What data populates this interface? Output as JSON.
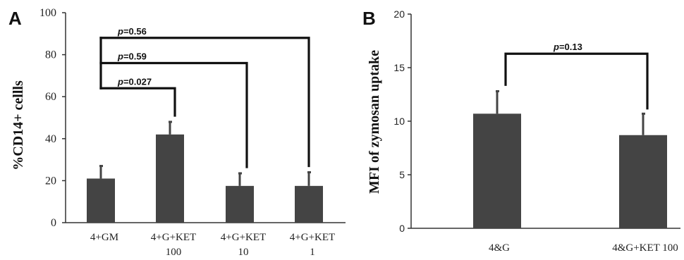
{
  "chart_data": [
    {
      "panel": "A",
      "type": "bar",
      "ylabel": "%CD14+ cellls",
      "ylim": [
        0,
        100
      ],
      "yticks": [
        0,
        20,
        40,
        60,
        80,
        100
      ],
      "categories": [
        [
          "4+GM"
        ],
        [
          "4+G+KET",
          "100"
        ],
        [
          "4+G+KET",
          "10"
        ],
        [
          "4+G+KET",
          "1"
        ]
      ],
      "values": [
        21,
        42,
        17.5,
        17.5
      ],
      "errors": [
        6,
        6,
        6,
        6.5
      ],
      "colors": {
        "bar": "#444444"
      },
      "comparisons": [
        {
          "from": 0,
          "to": 3,
          "label": "p=0.56",
          "p_prefix": "p",
          "p_value": "=0.56",
          "level": 88
        },
        {
          "from": 0,
          "to": 2,
          "label": "p=0.59",
          "p_prefix": "p",
          "p_value": "=0.59",
          "level": 76
        },
        {
          "from": 0,
          "to": 1,
          "label": "p=0.027",
          "p_prefix": "p",
          "p_value": "=0.027",
          "level": 64
        }
      ]
    },
    {
      "panel": "B",
      "type": "bar",
      "ylabel": "MFI of zymosan  uptake",
      "ylim": [
        0,
        20
      ],
      "yticks": [
        0,
        5,
        10,
        15,
        20
      ],
      "categories": [
        [
          "4&G"
        ],
        [
          "4&G+KET 100"
        ]
      ],
      "values": [
        10.7,
        8.7
      ],
      "errors": [
        2.1,
        2.0
      ],
      "colors": {
        "bar": "#444444"
      },
      "comparisons": [
        {
          "from": 0,
          "to": 1,
          "label": "p=0.13",
          "p_prefix": "p",
          "p_value": "=0.13",
          "level": 16.3
        }
      ]
    }
  ]
}
